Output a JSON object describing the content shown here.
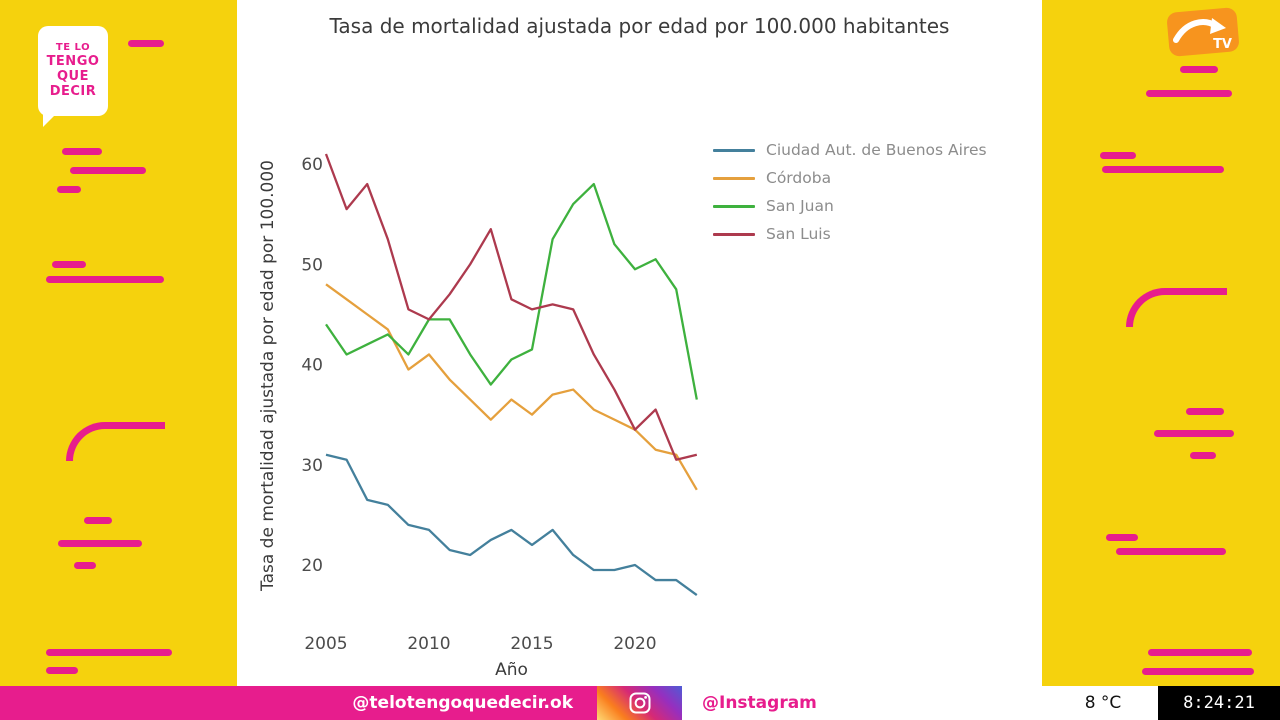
{
  "branding": {
    "logo_lines": [
      "TE LO",
      "TENGO",
      "QUE",
      "DECIR"
    ],
    "tv_badge": "TV",
    "accent_magenta": "#e71d8d",
    "background_yellow": "#f5d20d",
    "channel_orange": "#f7941e"
  },
  "ticker": {
    "handle": "@telotengoquedecir.ok",
    "instagram_handle": "@Instagram",
    "temperature": "8 °C",
    "clock": "8:24:21"
  },
  "chart_data": {
    "type": "line",
    "title": "Tasa de mortalidad ajustada por edad por 100.000 habitantes",
    "xlabel": "Año",
    "ylabel": "Tasa de mortalidad ajustada por edad por 100.000",
    "x": [
      2005,
      2006,
      2007,
      2008,
      2009,
      2010,
      2011,
      2012,
      2013,
      2014,
      2015,
      2016,
      2017,
      2018,
      2019,
      2020,
      2021,
      2022,
      2023
    ],
    "xticks": [
      2005,
      2010,
      2015,
      2020
    ],
    "yticks": [
      20,
      30,
      40,
      50,
      60
    ],
    "ylim": [
      15,
      63
    ],
    "grid": false,
    "legend_position": "upper right",
    "series": [
      {
        "name": "Ciudad Aut. de Buenos Aires",
        "color": "#44809c",
        "values": [
          31,
          30.5,
          26.5,
          26,
          24,
          23.5,
          21.5,
          21,
          22.5,
          23.5,
          22,
          23.5,
          21,
          19.5,
          19.5,
          20,
          18.5,
          18.5,
          17
        ]
      },
      {
        "name": "Córdoba",
        "color": "#e5a03d",
        "values": [
          48,
          46.5,
          45,
          43.5,
          39.5,
          41,
          38.5,
          36.5,
          34.5,
          36.5,
          35,
          37,
          37.5,
          35.5,
          34.5,
          33.5,
          31.5,
          31,
          27.5
        ]
      },
      {
        "name": "San Juan",
        "color": "#3eb13e",
        "values": [
          44,
          41,
          42,
          43,
          41,
          44.5,
          44.5,
          41,
          38,
          40.5,
          41.5,
          52.5,
          56,
          58,
          52,
          49.5,
          50.5,
          47.5,
          36.5
        ]
      },
      {
        "name": "San Luis",
        "color": "#ad3a4e",
        "values": [
          61,
          55.5,
          58,
          52.5,
          45.5,
          44.5,
          47,
          50,
          53.5,
          46.5,
          45.5,
          46,
          45.5,
          41,
          37.5,
          33.5,
          35.5,
          30.5,
          31
        ]
      }
    ]
  }
}
